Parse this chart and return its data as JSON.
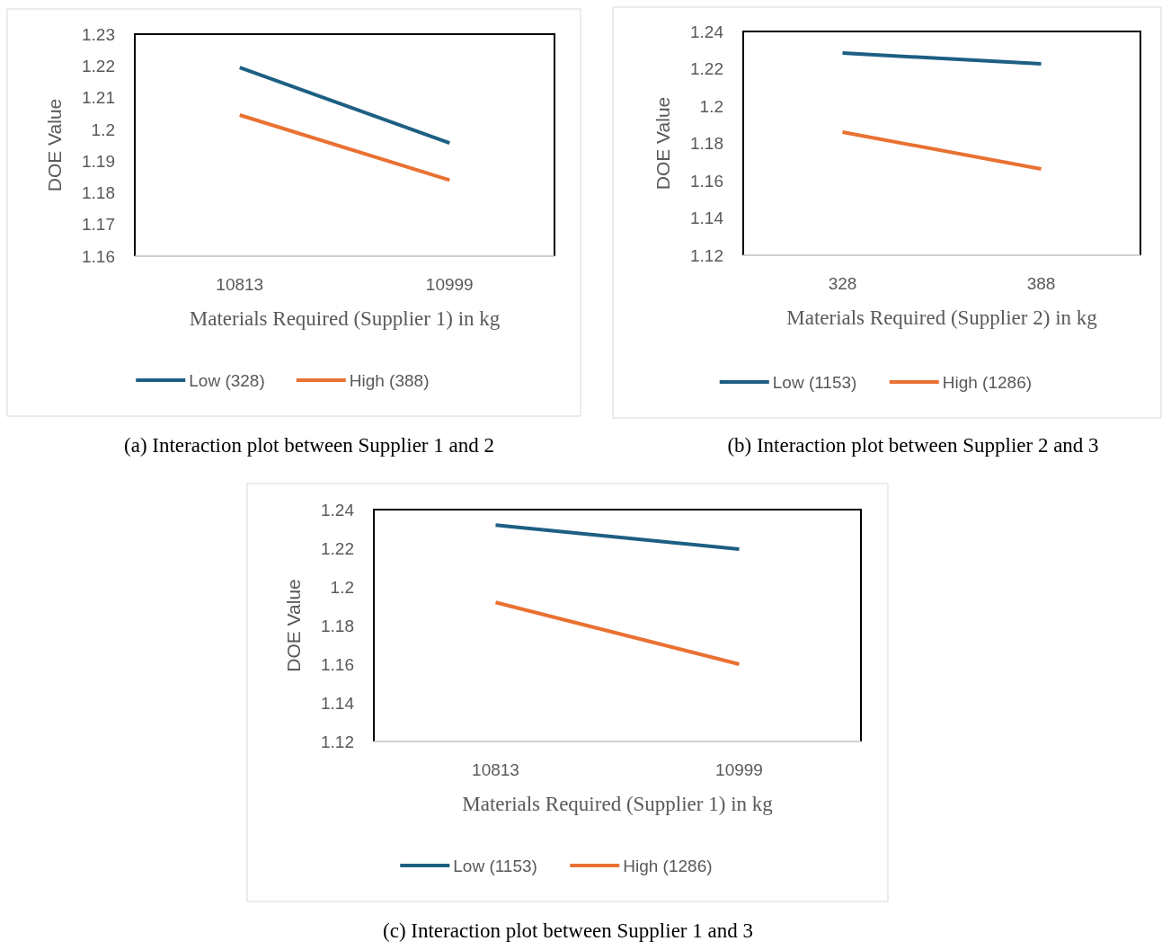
{
  "chart_data": [
    {
      "type": "line",
      "categories": [
        "10813",
        "10999"
      ],
      "xlabel": "Materials Required (Supplier 1) in kg",
      "ylabel": "DOE Value",
      "ylim": [
        1.16,
        1.23
      ],
      "yticks": [
        1.16,
        1.17,
        1.18,
        1.19,
        1.2,
        1.21,
        1.22,
        1.23
      ],
      "grid": false,
      "legend": "bottom",
      "marker": "none",
      "line_style": "solid",
      "annotations": [
        "(a) Interaction plot between Supplier 1 and 2"
      ],
      "series": [
        {
          "name": "Low (328)",
          "color": "#1d5f83",
          "values": [
            1.2195,
            1.1957
          ]
        },
        {
          "name": "High (388)",
          "color": "#e97132",
          "values": [
            1.2045,
            1.184
          ]
        }
      ]
    },
    {
      "type": "line",
      "categories": [
        "328",
        "388"
      ],
      "xlabel": "Materials Required (Supplier 2) in kg",
      "ylabel": "DOE Value",
      "ylim": [
        1.12,
        1.24
      ],
      "yticks": [
        1.12,
        1.14,
        1.16,
        1.18,
        1.2,
        1.22,
        1.24
      ],
      "grid": false,
      "legend": "bottom",
      "marker": "none",
      "line_style": "solid",
      "annotations": [
        "(b) Interaction plot between Supplier 2 and 3"
      ],
      "series": [
        {
          "name": "Low (1153)",
          "color": "#1d5f83",
          "values": [
            1.2284,
            1.2226
          ]
        },
        {
          "name": "High (1286)",
          "color": "#e97132",
          "values": [
            1.186,
            1.1663
          ]
        }
      ]
    },
    {
      "type": "line",
      "categories": [
        "10813",
        "10999"
      ],
      "xlabel": "Materials Required (Supplier 1) in kg",
      "ylabel": "DOE Value",
      "ylim": [
        1.12,
        1.24
      ],
      "yticks": [
        1.12,
        1.14,
        1.16,
        1.18,
        1.2,
        1.22,
        1.24
      ],
      "grid": false,
      "legend": "bottom",
      "marker": "none",
      "line_style": "solid",
      "annotations": [
        "(c) Interaction plot between Supplier 1 and 3"
      ],
      "series": [
        {
          "name": "Low (1153)",
          "color": "#1d5f83",
          "values": [
            1.232,
            1.2195
          ]
        },
        {
          "name": "High (1286)",
          "color": "#e97132",
          "values": [
            1.192,
            1.16
          ]
        }
      ]
    }
  ]
}
